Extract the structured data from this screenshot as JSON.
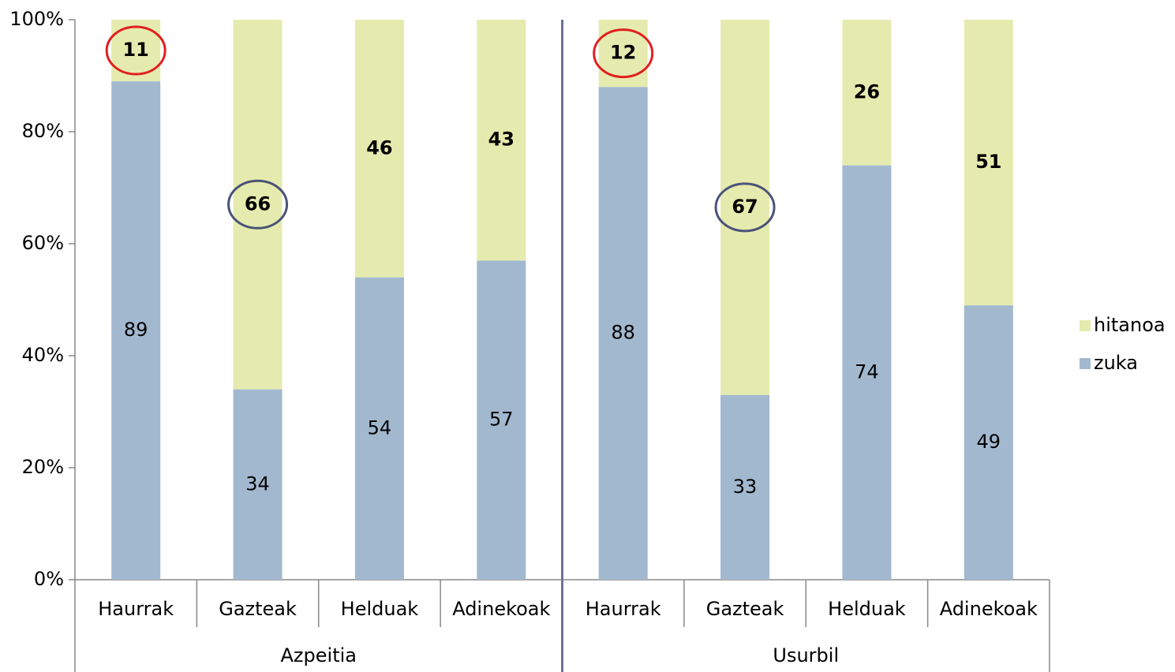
{
  "chart_data": {
    "type": "stacked_bar",
    "categories": [
      "Haurrak",
      "Gazteak",
      "Helduak",
      "Adinekoak",
      "Haurrak",
      "Gazteak",
      "Helduak",
      "Adinekoak"
    ],
    "groups": [
      "Azpeitia",
      "Usurbil"
    ],
    "series": [
      {
        "name": "zuka",
        "color": "#a2b8cf",
        "bold": false,
        "values": [
          89,
          34,
          54,
          57,
          88,
          33,
          74,
          49
        ]
      },
      {
        "name": "hitanoa",
        "color": "#e5ebae",
        "bold": true,
        "values": [
          11,
          66,
          46,
          43,
          12,
          67,
          26,
          51
        ]
      }
    ],
    "ylim": [
      0,
      100
    ],
    "yticks": [
      {
        "value": 0,
        "label": "0%"
      },
      {
        "value": 20,
        "label": "20%"
      },
      {
        "value": 40,
        "label": "40%"
      },
      {
        "value": 60,
        "label": "60%"
      },
      {
        "value": 80,
        "label": "80%"
      },
      {
        "value": 100,
        "label": "100%"
      }
    ],
    "highlights": [
      {
        "series": 1,
        "index": 0,
        "color": "#e02020"
      },
      {
        "series": 1,
        "index": 4,
        "color": "#e02020"
      },
      {
        "series": 1,
        "index": 1,
        "color": "#4a5378"
      },
      {
        "series": 1,
        "index": 5,
        "color": "#4a5378"
      }
    ],
    "legend": "right"
  }
}
